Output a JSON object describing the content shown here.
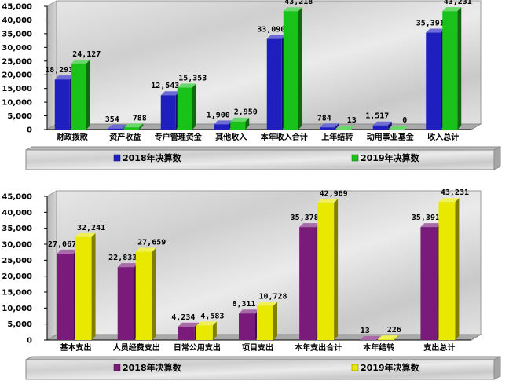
{
  "chart_data": [
    {
      "type": "bar",
      "categories": [
        "财政拨款",
        "资产收益",
        "专户管理资金",
        "其他收入",
        "本年收入合计",
        "上年结转",
        "动用事业基金",
        "收入总计"
      ],
      "series": [
        {
          "name": "2018年决算数",
          "values": [
            18293,
            354,
            12543,
            1900,
            33090,
            784,
            1517,
            35391
          ],
          "labels": [
            "18,293",
            "354",
            "12,543",
            "1,900",
            "33,090",
            "784",
            "1,517",
            "35,391"
          ]
        },
        {
          "name": "2019年决算数",
          "values": [
            24127,
            788,
            15353,
            2950,
            43218,
            13,
            0,
            43231
          ],
          "labels": [
            "24,127",
            "788",
            "15,353",
            "2,950",
            "43,218",
            "13",
            "0",
            "43,231"
          ]
        }
      ],
      "ylim": [
        0,
        45000
      ],
      "yticks": [
        "0",
        "5,000",
        "10,000",
        "15,000",
        "20,000",
        "25,000",
        "30,000",
        "35,000",
        "40,000",
        "45,000"
      ],
      "legend": "bottom",
      "colors": [
        "#1f1fbf",
        "#19c219"
      ]
    },
    {
      "type": "bar",
      "categories": [
        "基本支出",
        "人员经费支出",
        "日常公用支出",
        "项目支出",
        "本年支出合计",
        "本年结转",
        "支出总计"
      ],
      "series": [
        {
          "name": "2018年决算数",
          "values": [
            27067,
            22833,
            4234,
            8311,
            35378,
            13,
            35391
          ],
          "labels": [
            "27,067",
            "22,833",
            "4,234",
            "8,311",
            "35,378",
            "13",
            "35,391"
          ]
        },
        {
          "name": "2019年决算数",
          "values": [
            32241,
            27659,
            4583,
            10728,
            42969,
            226,
            43231
          ],
          "labels": [
            "32,241",
            "27,659",
            "4,583",
            "10,728",
            "42,969",
            "226",
            "43,231"
          ]
        }
      ],
      "ylim": [
        0,
        45000
      ],
      "yticks": [
        "0",
        "5,000",
        "10,000",
        "15,000",
        "20,000",
        "25,000",
        "30,000",
        "35,000",
        "40,000",
        "45,000"
      ],
      "legend": "bottom",
      "colors": [
        "#7a1a7a",
        "#e8e800"
      ]
    }
  ]
}
